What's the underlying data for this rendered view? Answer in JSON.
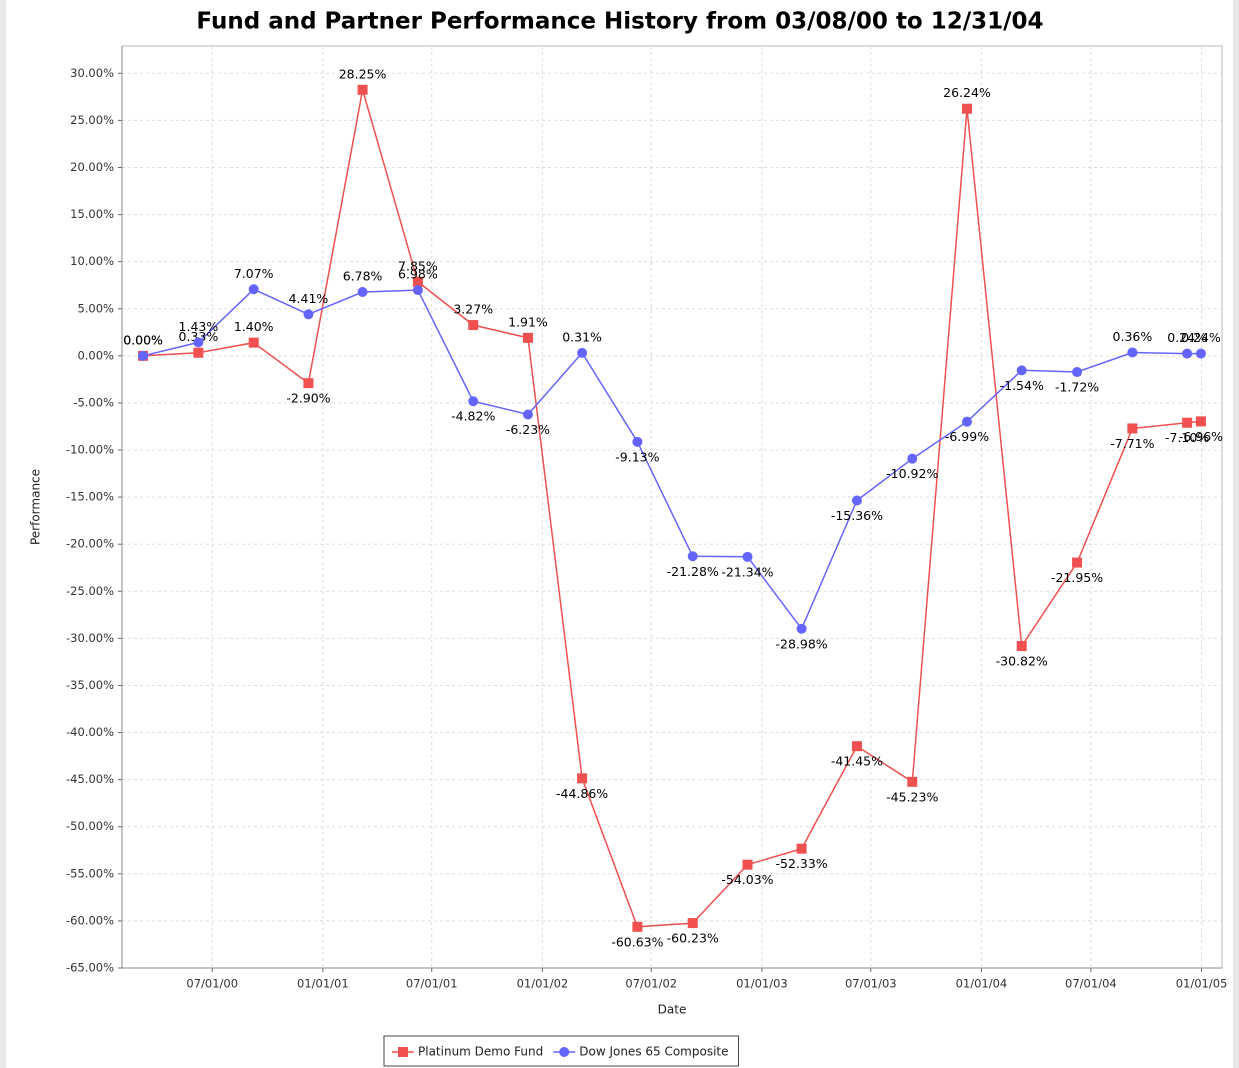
{
  "chart_data": {
    "type": "line",
    "title": "Fund and Partner Performance History from 03/08/00 to 12/31/04",
    "x_label": "Date",
    "y_label": "Performance",
    "x": [
      "2000-03-08",
      "2000-06-08",
      "2000-09-08",
      "2000-12-08",
      "2001-03-08",
      "2001-06-08",
      "2001-09-08",
      "2001-12-08",
      "2002-03-08",
      "2002-06-08",
      "2002-09-08",
      "2002-12-08",
      "2003-03-08",
      "2003-06-08",
      "2003-09-08",
      "2003-12-08",
      "2004-03-08",
      "2004-06-08",
      "2004-09-08",
      "2004-12-08",
      "2004-12-31"
    ],
    "series": [
      {
        "name": "Platinum Demo Fund",
        "color": "#f05050",
        "marker": "square",
        "values": [
          0.0,
          0.33,
          1.4,
          -2.9,
          28.25,
          7.85,
          3.27,
          1.91,
          -44.86,
          -60.63,
          -60.23,
          -54.03,
          -52.33,
          -41.45,
          -45.23,
          26.24,
          -30.82,
          -21.95,
          -7.71,
          -7.1,
          -6.96
        ],
        "value_labels": [
          "0.00%",
          "0.33%",
          "1.40%",
          "-2.90%",
          "28.25%",
          "7.85%",
          "3.27%",
          "1.91%",
          "-44.86%",
          "-60.63%",
          "-60.23%",
          "-54.03%",
          "-52.33%",
          "-41.45%",
          "-45.23%",
          "26.24%",
          "-30.82%",
          "-21.95%",
          "-7.71%",
          "-7.10%",
          "-6.96%"
        ]
      },
      {
        "name": "Dow Jones 65 Composite",
        "color": "#6464ff",
        "marker": "circle",
        "values": [
          0.0,
          1.43,
          7.07,
          4.41,
          6.78,
          6.98,
          -4.82,
          -6.23,
          0.31,
          -9.13,
          -21.28,
          -21.34,
          -28.98,
          -15.36,
          -10.92,
          -6.99,
          -1.54,
          -1.72,
          0.36,
          0.24,
          0.24
        ],
        "value_labels": [
          "0.00%",
          "1.43%",
          "7.07%",
          "4.41%",
          "6.78%",
          "6.98%",
          "-4.82%",
          "-6.23%",
          "0.31%",
          "-9.13%",
          "-21.28%",
          "-21.34%",
          "-28.98%",
          "-15.36%",
          "-10.92%",
          "-6.99%",
          "-1.54%",
          "-1.72%",
          "0.36%",
          "0.24%",
          "0.24%"
        ]
      }
    ],
    "xlim": [
      "2000-02-02",
      "2005-02-04"
    ],
    "xticks": [
      {
        "value": "2000-07-01",
        "label": "07/01/00"
      },
      {
        "value": "2001-01-01",
        "label": "01/01/01"
      },
      {
        "value": "2001-07-01",
        "label": "07/01/01"
      },
      {
        "value": "2002-01-01",
        "label": "01/01/02"
      },
      {
        "value": "2002-07-01",
        "label": "07/01/02"
      },
      {
        "value": "2003-01-01",
        "label": "01/01/03"
      },
      {
        "value": "2003-07-01",
        "label": "07/01/03"
      },
      {
        "value": "2004-01-01",
        "label": "01/01/04"
      },
      {
        "value": "2004-07-01",
        "label": "07/01/04"
      },
      {
        "value": "2005-01-01",
        "label": "01/01/05"
      }
    ],
    "ylim": [
      -65,
      32.9
    ],
    "yticks": [
      {
        "value": -65,
        "label": "-65.00%"
      },
      {
        "value": -60,
        "label": "-60.00%"
      },
      {
        "value": -55,
        "label": "-55.00%"
      },
      {
        "value": -50,
        "label": "-50.00%"
      },
      {
        "value": -45,
        "label": "-45.00%"
      },
      {
        "value": -40,
        "label": "-40.00%"
      },
      {
        "value": -35,
        "label": "-35.00%"
      },
      {
        "value": -30,
        "label": "-30.00%"
      },
      {
        "value": -25,
        "label": "-25.00%"
      },
      {
        "value": -20,
        "label": "-20.00%"
      },
      {
        "value": -15,
        "label": "-15.00%"
      },
      {
        "value": -10,
        "label": "-10.00%"
      },
      {
        "value": -5,
        "label": "-5.00%"
      },
      {
        "value": 0,
        "label": "0.00%"
      },
      {
        "value": 5,
        "label": "5.00%"
      },
      {
        "value": 10,
        "label": "10.00%"
      },
      {
        "value": 15,
        "label": "15.00%"
      },
      {
        "value": 20,
        "label": "20.00%"
      },
      {
        "value": 25,
        "label": "25.00%"
      },
      {
        "value": 30,
        "label": "30.00%"
      }
    ],
    "grid": true,
    "legend": "bottom"
  }
}
